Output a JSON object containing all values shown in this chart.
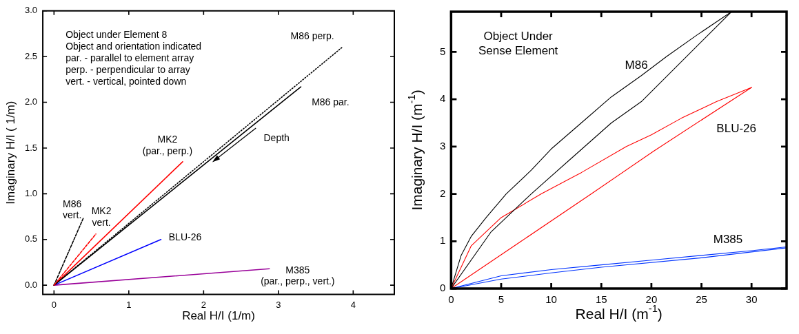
{
  "chart_data": [
    {
      "type": "line",
      "xlabel": "Real H/I (1/m)",
      "ylabel": "Imaginary H/I ( 1/m)",
      "xlim": [
        -0.15,
        4.55
      ],
      "xticks": [
        0,
        1,
        2,
        3,
        4
      ],
      "ylim": [
        -0.1,
        3.0
      ],
      "yticks": [
        {
          "value": 0,
          "label": "0.0"
        },
        0.5,
        {
          "value": 1,
          "label": "1.0"
        },
        1.5,
        {
          "value": 2,
          "label": "2.0"
        },
        2.5,
        {
          "value": 3,
          "label": "3.0"
        }
      ],
      "series": [
        {
          "name": "M86 perp.",
          "color": "#000000",
          "line_style": "dotted",
          "x": [
            0,
            3.85
          ],
          "values": [
            0,
            2.6
          ]
        },
        {
          "name": "M86 par.",
          "color": "#000000",
          "line_style": "solid",
          "x": [
            0,
            3.3
          ],
          "values": [
            0,
            2.17
          ]
        },
        {
          "name": "MK2\n(par., perp.)",
          "color": "#ff0000",
          "line_style": "solid",
          "x": [
            0,
            1.72
          ],
          "values": [
            0,
            1.35
          ]
        },
        {
          "name": "M86\nvert.",
          "color": "#000000",
          "line_style": "dashed",
          "x": [
            0,
            0.39
          ],
          "values": [
            0,
            0.73
          ]
        },
        {
          "name": "MK2\nvert.",
          "color": "#ff0000",
          "line_style": "dashed",
          "x": [
            0,
            0.56
          ],
          "values": [
            0,
            0.56
          ]
        },
        {
          "name": "BLU-26",
          "color": "#0000ff",
          "line_style": "solid",
          "x": [
            0,
            1.43
          ],
          "values": [
            0,
            0.5
          ]
        },
        {
          "name": "M385\n(par., perp., vert.)",
          "color": "#990099",
          "line_style": "solid",
          "x": [
            0,
            2.88
          ],
          "values": [
            0,
            0.18
          ]
        }
      ],
      "annotations": [
        "Object under Element 8\nObject and orientation indicated\npar. - parallel to element array\nperp. - perpendicular to array\nvert. - vertical, pointed down",
        "Depth"
      ]
    },
    {
      "type": "line",
      "xlabel": "Real H/I (m$^{-1}$)",
      "ylabel": "Imaginary H/I (m$^{-1}$)",
      "xlim": [
        0,
        33.5
      ],
      "xticks": [
        0,
        5,
        10,
        15,
        20,
        25,
        30
      ],
      "ylim": [
        0,
        5.85
      ],
      "yticks": [
        0,
        1,
        2,
        3,
        4,
        5
      ],
      "series": [
        {
          "name": "M86",
          "color": "#000000",
          "line_style": "solid",
          "x": [
            0,
            1,
            2,
            3.5,
            5.5,
            8,
            10,
            13,
            16,
            19,
            21.5,
            24.5,
            28
          ],
          "values": [
            0,
            0.7,
            1.1,
            1.5,
            2.0,
            2.5,
            2.95,
            3.5,
            4.05,
            4.5,
            4.9,
            5.35,
            5.85
          ]
        },
        {
          "color": "#000000",
          "line_style": "solid",
          "x": [
            0,
            4,
            8,
            12,
            16,
            19,
            28
          ],
          "values": [
            0,
            1.2,
            2.0,
            2.75,
            3.5,
            3.95,
            5.85
          ]
        },
        {
          "name": "BLU-26",
          "color": "#ff0000",
          "line_style": "solid",
          "x": [
            0,
            2,
            5,
            9,
            13,
            17.5,
            20,
            23,
            26.5,
            30
          ],
          "values": [
            0,
            0.9,
            1.5,
            2.0,
            2.45,
            3.0,
            3.25,
            3.6,
            3.95,
            4.25
          ]
        },
        {
          "color": "#ff0000",
          "line_style": "solid",
          "x": [
            0,
            7,
            14,
            20.2,
            30
          ],
          "values": [
            0,
            1.0,
            2.0,
            2.9,
            4.25
          ]
        },
        {
          "name": "M385",
          "color": "#0033ff",
          "line_style": "solid",
          "x": [
            0,
            5,
            10,
            15,
            20,
            25,
            30,
            33.5
          ],
          "values": [
            0,
            0.27,
            0.4,
            0.5,
            0.6,
            0.7,
            0.8,
            0.88
          ]
        },
        {
          "color": "#0033ff",
          "line_style": "solid",
          "x": [
            0,
            5,
            10,
            15,
            25,
            33.5
          ],
          "values": [
            0,
            0.2,
            0.33,
            0.45,
            0.65,
            0.86
          ]
        }
      ],
      "annotations": [
        "Object Under\nSense Element"
      ]
    }
  ]
}
